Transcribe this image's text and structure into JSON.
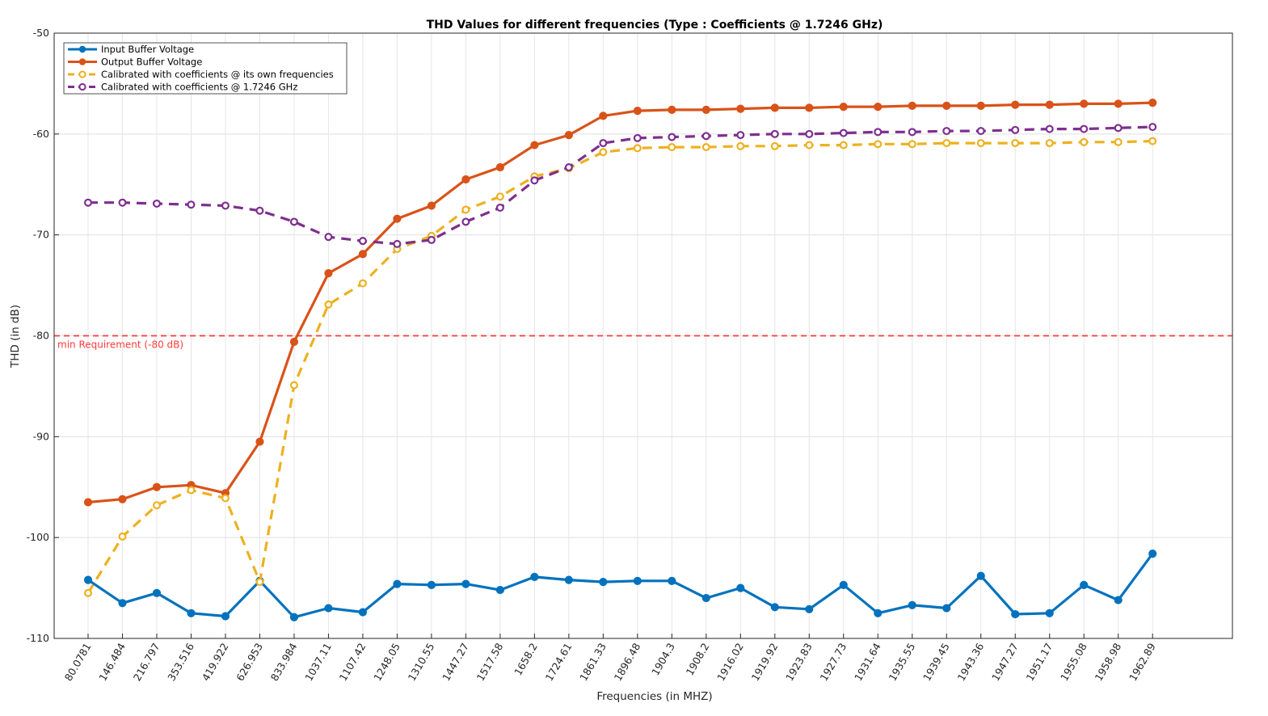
{
  "chart_data": {
    "type": "line",
    "title": "THD Values for different frequencies (Type : Coefficients @ 1.7246 GHz)",
    "xlabel": "Frequencies (in MHZ)",
    "ylabel": "THD (in dB)",
    "ylim": [
      -110,
      -50
    ],
    "yticks": [
      -50,
      -60,
      -70,
      -80,
      -90,
      -100,
      -110
    ],
    "grid": true,
    "legend_position": "top-left",
    "categories": [
      "80.0781",
      "146.484",
      "216.797",
      "353.516",
      "419.922",
      "626.953",
      "833.984",
      "1037.11",
      "1107.42",
      "1248.05",
      "1310.55",
      "1447.27",
      "1517.58",
      "1658.2",
      "1724.61",
      "1861.33",
      "1896.48",
      "1904.3",
      "1908.2",
      "1916.02",
      "1919.92",
      "1923.83",
      "1927.73",
      "1931.64",
      "1935.55",
      "1939.45",
      "1943.36",
      "1947.27",
      "1951.17",
      "1955.08",
      "1958.98",
      "1962.89"
    ],
    "series": [
      {
        "name": "Input Buffer Voltage",
        "color": "#0072BD",
        "style": "solid",
        "marker": "filled",
        "values": [
          -104.2,
          -106.5,
          -105.5,
          -107.5,
          -107.8,
          -104.3,
          -107.9,
          -107.0,
          -107.4,
          -104.6,
          -104.7,
          -104.6,
          -105.2,
          -103.9,
          -104.2,
          -104.4,
          -104.3,
          -104.3,
          -106.0,
          -105.0,
          -106.9,
          -107.1,
          -104.7,
          -107.5,
          -106.7,
          -107.0,
          -103.8,
          -107.6,
          -107.5,
          -104.7,
          -106.2,
          -101.6
        ]
      },
      {
        "name": "Output Buffer Voltage",
        "color": "#D95319",
        "style": "solid",
        "marker": "filled",
        "values": [
          -96.5,
          -96.2,
          -95.0,
          -94.8,
          -95.6,
          -90.5,
          -80.6,
          -73.8,
          -71.9,
          -68.4,
          -67.1,
          -64.5,
          -63.3,
          -61.1,
          -60.1,
          -58.2,
          -57.7,
          -57.6,
          -57.6,
          -57.5,
          -57.4,
          -57.4,
          -57.3,
          -57.3,
          -57.2,
          -57.2,
          -57.2,
          -57.1,
          -57.1,
          -57.0,
          -57.0,
          -56.9
        ]
      },
      {
        "name": "Calibrated with coefficients @ its own frequencies",
        "color": "#EDB120",
        "style": "dashed",
        "marker": "hollow",
        "values": [
          -105.5,
          -99.9,
          -96.8,
          -95.3,
          -96.1,
          -104.4,
          -84.9,
          -76.9,
          -74.8,
          -71.4,
          -70.1,
          -67.5,
          -66.2,
          -64.2,
          -63.4,
          -61.8,
          -61.4,
          -61.3,
          -61.3,
          -61.2,
          -61.2,
          -61.1,
          -61.1,
          -61.0,
          -61.0,
          -60.9,
          -60.9,
          -60.9,
          -60.9,
          -60.8,
          -60.8,
          -60.7
        ]
      },
      {
        "name": "Calibrated with coefficients @ 1.7246 GHz",
        "color": "#7E2F8E",
        "style": "dashed",
        "marker": "hollow",
        "values": [
          -66.8,
          -66.8,
          -66.9,
          -67.0,
          -67.1,
          -67.6,
          -68.7,
          -70.2,
          -70.6,
          -70.9,
          -70.5,
          -68.7,
          -67.3,
          -64.6,
          -63.3,
          -60.9,
          -60.4,
          -60.3,
          -60.2,
          -60.1,
          -60.0,
          -60.0,
          -59.9,
          -59.8,
          -59.8,
          -59.7,
          -59.7,
          -59.6,
          -59.5,
          -59.5,
          -59.4,
          -59.3
        ]
      }
    ],
    "reference_line": {
      "value": -80,
      "label": "min Requirement (-80 dB)",
      "color": "#FF3B3B",
      "style": "dashed"
    }
  }
}
